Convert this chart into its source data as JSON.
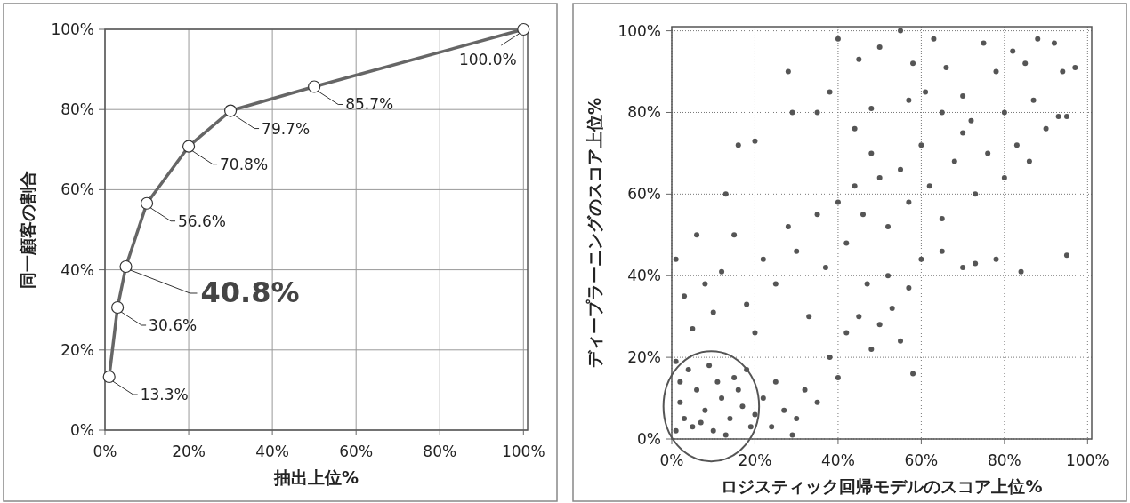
{
  "chart_data": [
    {
      "type": "line",
      "xlabel": "抽出上位%",
      "ylabel": "同一顧客の割合",
      "x": [
        1,
        3,
        5,
        10,
        20,
        30,
        50,
        100
      ],
      "series": [
        {
          "color": "#666666",
          "values": [
            13.3,
            30.6,
            40.8,
            56.6,
            70.8,
            79.7,
            85.7,
            100
          ],
          "value_labels": [
            "13.3%",
            "30.6%",
            null,
            "56.6%",
            "70.8%",
            "79.7%",
            "85.7%",
            "100.0%"
          ]
        }
      ],
      "annotations": [
        {
          "text": "40.8%",
          "x": 5,
          "y": 40.8
        }
      ],
      "xlim": [
        0,
        101
      ],
      "ylim": [
        0,
        100
      ],
      "xticks": [
        {
          "value": 0,
          "label": "0%"
        },
        {
          "value": 20,
          "label": "20%"
        },
        {
          "value": 40,
          "label": "40%"
        },
        {
          "value": 60,
          "label": "60%"
        },
        {
          "value": 80,
          "label": "80%"
        },
        {
          "value": 100,
          "label": "100%"
        }
      ],
      "yticks": [
        {
          "value": 0,
          "label": "0%"
        },
        {
          "value": 20,
          "label": "20%"
        },
        {
          "value": 40,
          "label": "40%"
        },
        {
          "value": 60,
          "label": "60%"
        },
        {
          "value": 80,
          "label": "80%"
        },
        {
          "value": 100,
          "label": "100%"
        }
      ],
      "grid": true,
      "marker": "circle",
      "line_style": "solid"
    },
    {
      "type": "scatter",
      "xlabel": "ロジスティック回帰モデルのスコア上位%",
      "ylabel": "ディープラーニングのスコア上位%",
      "series": [
        {
          "color": "#555555",
          "x": [
            1,
            3,
            2,
            5,
            6,
            8,
            10,
            12,
            14,
            15,
            17,
            19,
            4,
            9,
            11,
            13,
            16,
            18,
            7,
            2,
            1,
            20,
            22,
            24,
            25,
            27,
            29,
            30,
            32,
            35,
            38,
            40,
            42,
            45,
            48,
            50,
            53,
            55,
            58,
            47,
            52,
            57,
            60,
            65,
            70,
            73,
            78,
            84,
            95,
            1,
            3,
            5,
            8,
            10,
            12,
            15,
            18,
            20,
            22,
            25,
            28,
            30,
            33,
            35,
            37,
            40,
            42,
            44,
            46,
            48,
            50,
            52,
            55,
            57,
            60,
            62,
            65,
            68,
            70,
            73,
            76,
            80,
            83,
            86,
            90,
            93,
            20,
            29,
            13,
            6,
            16,
            28,
            38,
            40,
            45,
            50,
            55,
            58,
            61,
            63,
            66,
            70,
            75,
            78,
            82,
            85,
            88,
            92,
            94,
            97,
            65,
            72,
            48,
            35,
            44,
            57,
            80,
            87,
            95
          ],
          "values": [
            2,
            5,
            9,
            3,
            12,
            7,
            2,
            10,
            5,
            15,
            8,
            3,
            17,
            18,
            14,
            1,
            12,
            17,
            4,
            14,
            19,
            6,
            10,
            3,
            14,
            7,
            1,
            5,
            12,
            9,
            20,
            15,
            26,
            30,
            22,
            28,
            32,
            24,
            16,
            38,
            40,
            37,
            44,
            46,
            42,
            43,
            44,
            41,
            45,
            44,
            35,
            27,
            38,
            31,
            41,
            50,
            33,
            26,
            44,
            38,
            52,
            46,
            30,
            55,
            42,
            58,
            48,
            62,
            55,
            70,
            64,
            52,
            66,
            58,
            72,
            62,
            54,
            68,
            75,
            60,
            70,
            64,
            72,
            68,
            76,
            79,
            73,
            80,
            60,
            50,
            72,
            90,
            85,
            98,
            93,
            96,
            100,
            92,
            85,
            98,
            91,
            84,
            97,
            90,
            95,
            92,
            98,
            97,
            90,
            91,
            80,
            78,
            81,
            80,
            76,
            83,
            80,
            83,
            79
          ]
        }
      ],
      "xlim": [
        0,
        101
      ],
      "ylim": [
        0,
        101
      ],
      "xticks": [
        {
          "value": 0,
          "label": "0%"
        },
        {
          "value": 20,
          "label": "20%"
        },
        {
          "value": 40,
          "label": "40%"
        },
        {
          "value": 60,
          "label": "60%"
        },
        {
          "value": 80,
          "label": "80%"
        },
        {
          "value": 100,
          "label": "100%"
        }
      ],
      "yticks": [
        {
          "value": 0,
          "label": "0%"
        },
        {
          "value": 20,
          "label": "20%"
        },
        {
          "value": 40,
          "label": "40%"
        },
        {
          "value": 60,
          "label": "60%"
        },
        {
          "value": 80,
          "label": "80%"
        },
        {
          "value": 100,
          "label": "100%"
        }
      ],
      "grid": true,
      "marker": "circle"
    }
  ]
}
